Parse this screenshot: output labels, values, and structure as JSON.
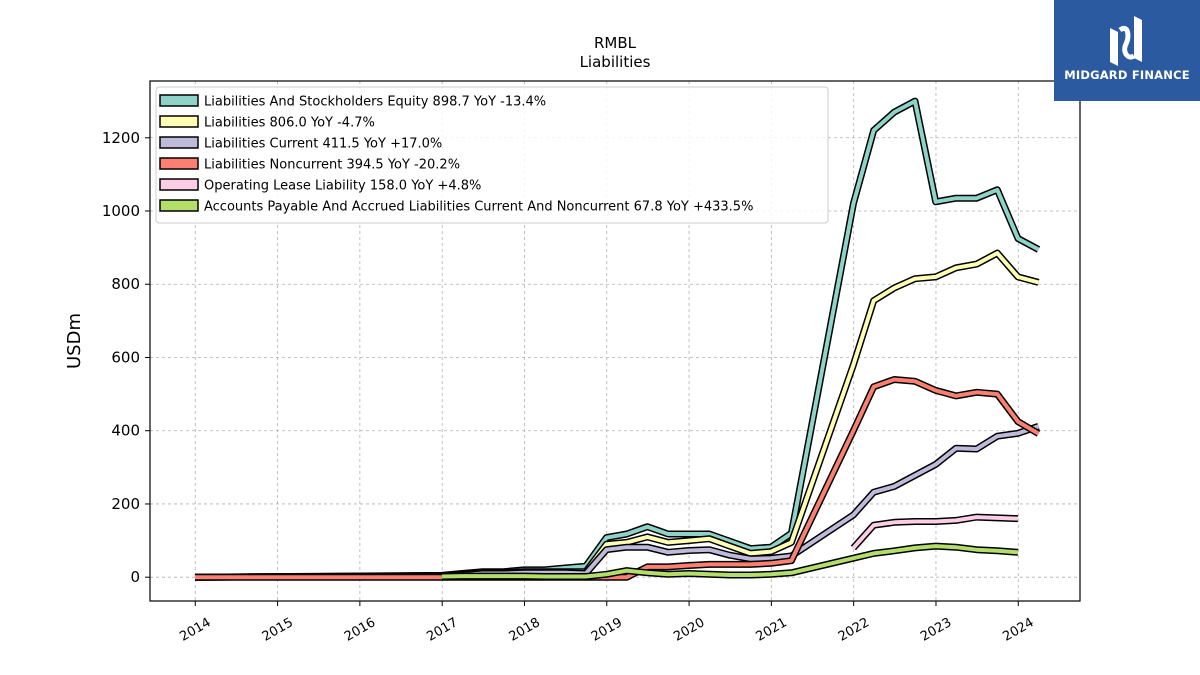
{
  "brand": {
    "name": "MIDGARD FINANCE",
    "icon": "midgard-logo-icon",
    "color": "#2c5aa0"
  },
  "chart_data": {
    "type": "line",
    "title": "RMBL",
    "subtitle": "Liabilities",
    "ylabel": "USDm",
    "xlabel": "",
    "xlim": [
      2013.45,
      2024.75
    ],
    "ylim": [
      -65,
      1355
    ],
    "yticks": [
      0,
      200,
      400,
      600,
      800,
      1000,
      1200
    ],
    "xticks": [
      "2014",
      "2015",
      "2016",
      "2017",
      "2018",
      "2019",
      "2020",
      "2021",
      "2022",
      "2023",
      "2024"
    ],
    "grid": true,
    "legend_position": "top-left",
    "series": [
      {
        "name": "Liabilities And Stockholders Equity",
        "legend": "Liabilities And Stockholders Equity  898.7 YoY -13.4%",
        "color": "#8dd3c7",
        "x": [
          "2013-12-31",
          "2016-12-31",
          "2017-03-31",
          "2017-06-30",
          "2017-09-30",
          "2017-12-31",
          "2018-03-31",
          "2018-06-30",
          "2018-09-30",
          "2018-12-31",
          "2019-03-31",
          "2019-06-30",
          "2019-09-30",
          "2019-12-31",
          "2020-03-31",
          "2020-06-30",
          "2020-09-30",
          "2020-12-31",
          "2021-03-31",
          "2021-12-31",
          "2022-03-31",
          "2022-06-30",
          "2022-09-30",
          "2022-12-31",
          "2023-03-31",
          "2023-06-30",
          "2023-09-30",
          "2023-12-31",
          "2024-03-31"
        ],
        "values": [
          0,
          5,
          10,
          15,
          15,
          20,
          20,
          25,
          30,
          108,
          118,
          138,
          118,
          118,
          118,
          98,
          78,
          82,
          120,
          1020,
          1220,
          1270,
          1300,
          1025,
          1035,
          1035,
          1058,
          925,
          895
        ]
      },
      {
        "name": "Liabilities",
        "legend": "Liabilities  806.0 YoY -4.7%",
        "color": "#ffffb3",
        "x": [
          "2013-12-31",
          "2016-12-31",
          "2017-03-31",
          "2017-06-30",
          "2017-09-30",
          "2017-12-31",
          "2018-03-31",
          "2018-06-30",
          "2018-09-30",
          "2018-12-31",
          "2019-03-31",
          "2019-06-30",
          "2019-09-30",
          "2019-12-31",
          "2020-03-31",
          "2020-06-30",
          "2020-09-30",
          "2020-12-31",
          "2021-03-31",
          "2021-12-31",
          "2022-03-31",
          "2022-06-30",
          "2022-09-30",
          "2022-12-31",
          "2023-03-31",
          "2023-06-30",
          "2023-09-30",
          "2023-12-31",
          "2024-03-31"
        ],
        "values": [
          0,
          4,
          8,
          12,
          12,
          15,
          15,
          15,
          15,
          90,
          95,
          110,
          95,
          100,
          105,
          85,
          65,
          70,
          95,
          580,
          755,
          790,
          815,
          820,
          845,
          855,
          885,
          820,
          805
        ]
      },
      {
        "name": "Liabilities Current",
        "legend": "Liabilities Current  411.5 YoY +17.0%",
        "color": "#bebada",
        "x": [
          "2013-12-31",
          "2016-12-31",
          "2017-03-31",
          "2017-06-30",
          "2017-09-30",
          "2017-12-31",
          "2018-03-31",
          "2018-06-30",
          "2018-09-30",
          "2018-12-31",
          "2019-03-31",
          "2019-06-30",
          "2019-09-30",
          "2019-12-31",
          "2020-03-31",
          "2020-06-30",
          "2020-09-30",
          "2020-12-31",
          "2021-03-31",
          "2021-12-31",
          "2022-03-31",
          "2022-06-30",
          "2022-09-30",
          "2022-12-31",
          "2023-03-31",
          "2023-06-30",
          "2023-09-30",
          "2023-12-31",
          "2024-03-31"
        ],
        "values": [
          0,
          3,
          6,
          10,
          10,
          12,
          12,
          12,
          10,
          75,
          82,
          82,
          68,
          73,
          75,
          60,
          50,
          52,
          58,
          170,
          232,
          248,
          278,
          308,
          352,
          350,
          385,
          393,
          412
        ]
      },
      {
        "name": "Liabilities Noncurrent",
        "legend": "Liabilities Noncurrent  394.5 YoY -20.2%",
        "color": "#fb8072",
        "x": [
          "2013-12-31",
          "2016-12-31",
          "2017-03-31",
          "2017-06-30",
          "2017-09-30",
          "2017-12-31",
          "2018-03-31",
          "2018-06-30",
          "2018-09-30",
          "2018-12-31",
          "2019-03-31",
          "2019-06-30",
          "2019-09-30",
          "2019-12-31",
          "2020-03-31",
          "2020-06-30",
          "2020-09-30",
          "2020-12-31",
          "2021-03-31",
          "2021-12-31",
          "2022-03-31",
          "2022-06-30",
          "2022-09-30",
          "2022-12-31",
          "2023-03-31",
          "2023-06-30",
          "2023-09-30",
          "2023-12-31",
          "2024-03-31"
        ],
        "values": [
          0,
          0,
          0,
          0,
          0,
          0,
          0,
          0,
          0,
          0,
          0,
          28,
          28,
          32,
          35,
          35,
          35,
          38,
          45,
          400,
          520,
          540,
          535,
          510,
          495,
          505,
          500,
          425,
          392
        ]
      },
      {
        "name": "Operating Lease Liability",
        "legend": "Operating Lease Liability  158.0 YoY +4.8%",
        "color": "#fccde5",
        "x": [
          "2021-12-31",
          "2022-03-31",
          "2022-06-30",
          "2022-09-30",
          "2022-12-31",
          "2023-03-31",
          "2023-06-30",
          "2023-09-30",
          "2023-12-31"
        ],
        "values": [
          80,
          142,
          150,
          152,
          152,
          155,
          164,
          162,
          160
        ]
      },
      {
        "name": "Accounts Payable And Accrued Liabilities Current And Noncurrent",
        "legend": "Accounts Payable And Accrued Liabilities Current And Noncurrent  67.8 YoY +433.5%",
        "color": "#b3de69",
        "x": [
          "2016-12-31",
          "2017-03-31",
          "2017-06-30",
          "2017-09-30",
          "2017-12-31",
          "2018-03-31",
          "2018-06-30",
          "2018-09-30",
          "2018-12-31",
          "2019-03-31",
          "2019-06-30",
          "2019-09-30",
          "2019-12-31",
          "2020-03-31",
          "2020-06-30",
          "2020-09-30",
          "2020-12-31",
          "2021-03-31",
          "2021-12-31",
          "2022-03-31",
          "2022-06-30",
          "2022-09-30",
          "2022-12-31",
          "2023-03-31",
          "2023-06-30",
          "2023-09-30",
          "2023-12-31"
        ],
        "values": [
          2,
          3,
          3,
          3,
          3,
          2,
          2,
          2,
          8,
          18,
          12,
          8,
          10,
          8,
          6,
          6,
          8,
          12,
          52,
          65,
          72,
          80,
          85,
          82,
          75,
          72,
          68
        ]
      }
    ]
  }
}
